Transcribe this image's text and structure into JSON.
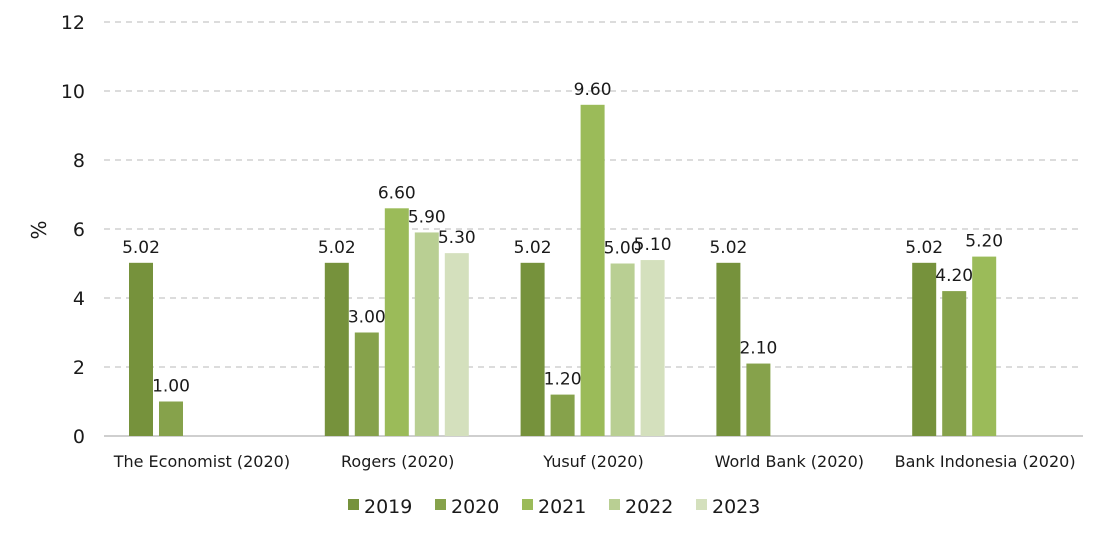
{
  "chart_data": {
    "type": "bar",
    "title": "",
    "xlabel": "",
    "ylabel": "%",
    "ylim": [
      0,
      12
    ],
    "yticks": [
      0,
      2,
      4,
      6,
      8,
      10,
      12
    ],
    "grid": "horizontal-dashed",
    "legend_position": "bottom",
    "categories": [
      "The Economist (2020)",
      "Rogers (2020)",
      "Yusuf (2020)",
      "World Bank (2020)",
      "Bank Indonesia (2020)"
    ],
    "series": [
      {
        "name": "2019",
        "color": "#76923c",
        "values": [
          5.02,
          5.02,
          5.02,
          5.02,
          5.02
        ],
        "labels": [
          "5.02",
          "5.02",
          "5.02",
          "5.02",
          "5.02"
        ]
      },
      {
        "name": "2020",
        "color": "#86a24b",
        "values": [
          1.0,
          3.0,
          1.2,
          2.1,
          4.2
        ],
        "labels": [
          "1.00",
          "3.00",
          "1.20",
          "2.10",
          "4.20"
        ]
      },
      {
        "name": "2021",
        "color": "#9bbb59",
        "values": [
          null,
          6.6,
          9.6,
          null,
          5.2
        ],
        "labels": [
          null,
          "6.60",
          "9.60",
          null,
          "5.20"
        ]
      },
      {
        "name": "2022",
        "color": "#b9cf93",
        "values": [
          null,
          5.9,
          5.0,
          null,
          null
        ],
        "labels": [
          null,
          "5.90",
          "5.00",
          null,
          null
        ]
      },
      {
        "name": "2023",
        "color": "#d4e0bd",
        "values": [
          null,
          5.3,
          5.1,
          null,
          null
        ],
        "labels": [
          null,
          "5.30",
          "5.10",
          null,
          null
        ]
      }
    ]
  }
}
